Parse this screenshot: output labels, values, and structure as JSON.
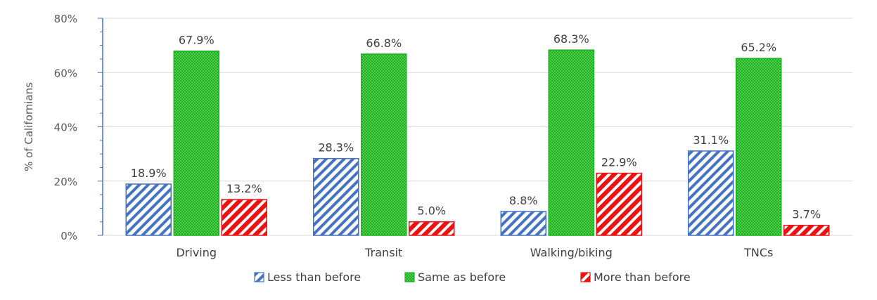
{
  "chart_data": {
    "type": "bar",
    "title": "",
    "xlabel": "",
    "ylabel": "% of Californians",
    "ylim": [
      0,
      80
    ],
    "y_tick_values": [
      0,
      20,
      40,
      60,
      80
    ],
    "y_tick_labels": [
      "0%",
      "20%",
      "40%",
      "60%",
      "80%"
    ],
    "categories": [
      "Driving",
      "Transit",
      "Walking/biking",
      "TNCs"
    ],
    "series": [
      {
        "name": "Less than before",
        "values": [
          18.9,
          28.3,
          8.8,
          31.1
        ],
        "labels": [
          "18.9%",
          "28.3%",
          "8.8%",
          "31.1%"
        ],
        "color": "#4472c4",
        "pattern": "diagonal-hatch"
      },
      {
        "name": "Same as before",
        "values": [
          67.9,
          66.8,
          68.3,
          65.2
        ],
        "labels": [
          "67.9%",
          "66.8%",
          "68.3%",
          "65.2%"
        ],
        "color": "#1db31d",
        "pattern": "dotted"
      },
      {
        "name": "More than before",
        "values": [
          13.2,
          5.0,
          22.9,
          3.7
        ],
        "labels": [
          "13.2%",
          "5.0%",
          "22.9%",
          "3.7%"
        ],
        "color": "#ee1111",
        "pattern": "wide-diagonal-hatch"
      }
    ],
    "grid": true,
    "legend_position": "bottom"
  }
}
